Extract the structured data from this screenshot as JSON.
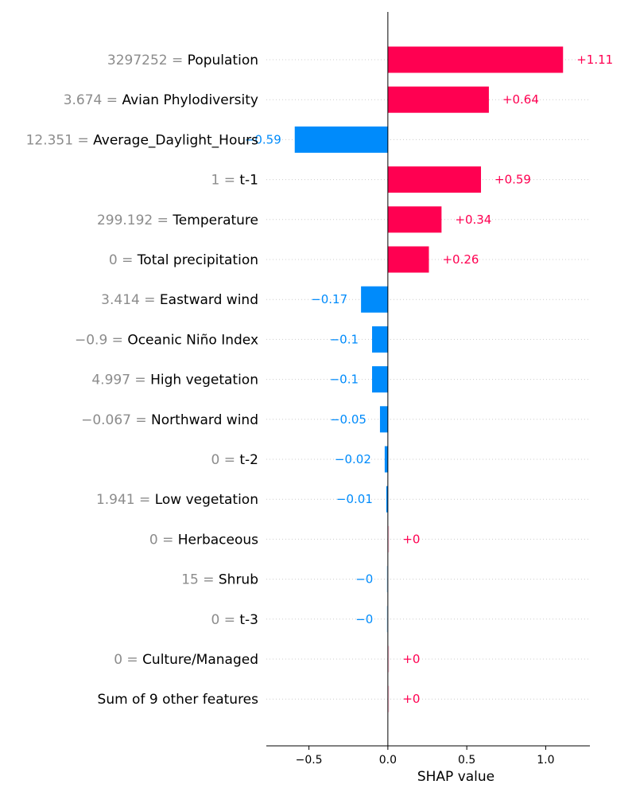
{
  "chart_data": {
    "type": "bar",
    "xlabel": "SHAP value",
    "xlim": [
      -0.77,
      1.28
    ],
    "xticks": [
      -0.5,
      0.0,
      0.5,
      1.0
    ],
    "xtick_labels": [
      "−0.5",
      "0.0",
      "0.5",
      "1.0"
    ],
    "positive_color": "#ff0051",
    "negative_color": "#008bfb",
    "grid": "horizontal dotted",
    "rows": [
      {
        "feature": "Population",
        "feature_value": "3297252",
        "value": 1.11,
        "label": "+1.11"
      },
      {
        "feature": "Avian Phylodiversity",
        "feature_value": "3.674",
        "value": 0.64,
        "label": "+0.64"
      },
      {
        "feature": "Average_Daylight_Hours",
        "feature_value": "12.351",
        "value": -0.59,
        "label": "−0.59"
      },
      {
        "feature": "t-1",
        "feature_value": "1",
        "value": 0.59,
        "label": "+0.59"
      },
      {
        "feature": "Temperature",
        "feature_value": "299.192",
        "value": 0.34,
        "label": "+0.34"
      },
      {
        "feature": "Total precipitation",
        "feature_value": "0",
        "value": 0.26,
        "label": "+0.26"
      },
      {
        "feature": "Eastward wind",
        "feature_value": "3.414",
        "value": -0.17,
        "label": "−0.17"
      },
      {
        "feature": "Oceanic Niño Index",
        "feature_value": "−0.9",
        "value": -0.1,
        "label": "−0.1"
      },
      {
        "feature": "High vegetation",
        "feature_value": "4.997",
        "value": -0.1,
        "label": "−0.1"
      },
      {
        "feature": "Northward wind",
        "feature_value": "−0.067",
        "value": -0.05,
        "label": "−0.05"
      },
      {
        "feature": "t-2",
        "feature_value": "0",
        "value": -0.02,
        "label": "−0.02"
      },
      {
        "feature": "Low vegetation",
        "feature_value": "1.941",
        "value": -0.01,
        "label": "−0.01"
      },
      {
        "feature": "Herbaceous",
        "feature_value": "0",
        "value": 0.003,
        "label": "+0"
      },
      {
        "feature": "Shrub",
        "feature_value": "15",
        "value": -0.003,
        "label": "−0"
      },
      {
        "feature": "t-3",
        "feature_value": "0",
        "value": -0.003,
        "label": "−0"
      },
      {
        "feature": "Culture/Managed",
        "feature_value": "0",
        "value": 0.003,
        "label": "+0"
      },
      {
        "feature": "Sum of 9 other features",
        "feature_value": "",
        "value": 0.003,
        "label": "+0"
      }
    ]
  }
}
